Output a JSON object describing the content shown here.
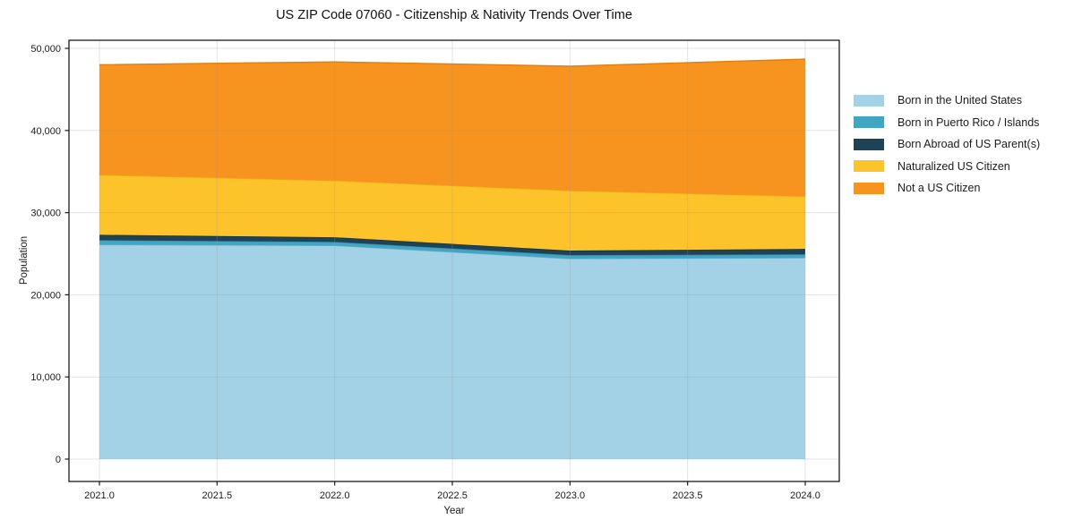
{
  "figure": {
    "background": "#ffffff",
    "text_color": "#1a1a1a",
    "grid_color": "#999999",
    "spine_color": "#1a1a1a"
  },
  "chart_data": {
    "type": "area",
    "stacked": true,
    "title": "US ZIP Code 07060 - Citizenship & Nativity Trends Over Time",
    "xlabel": "Year",
    "ylabel": "Population",
    "x": [
      2021,
      2022,
      2023,
      2024
    ],
    "series": [
      {
        "name": "Born in the United States",
        "color": "#a3d2e6",
        "edge": "#74b3cd",
        "values": [
          26100,
          26000,
          24400,
          24500
        ]
      },
      {
        "name": "Born in Puerto Rico / Islands",
        "color": "#43a5c4",
        "edge": "#2e84a0",
        "values": [
          550,
          450,
          430,
          430
        ]
      },
      {
        "name": "Born Abroad of US Parent(s)",
        "color": "#1e4356",
        "edge": "#152f3d",
        "values": [
          650,
          550,
          550,
          650
        ]
      },
      {
        "name": "Naturalized US Citizen",
        "color": "#fdc32b",
        "edge": "#edae14",
        "values": [
          7300,
          6900,
          7300,
          6400
        ]
      },
      {
        "name": "Not a US Citizen",
        "color": "#f7941f",
        "edge": "#e07f0d",
        "values": [
          13400,
          14450,
          15150,
          16700
        ]
      }
    ],
    "stacked_totals": [
      48000,
      48350,
      47830,
      48680
    ],
    "x_ticks": {
      "values": [
        2021.0,
        2021.5,
        2022.0,
        2022.5,
        2023.0,
        2023.5,
        2024.0
      ],
      "labels": [
        "2021.0",
        "2021.5",
        "2022.0",
        "2022.5",
        "2023.0",
        "2023.5",
        "2024.0"
      ]
    },
    "y_ticks": {
      "values": [
        0,
        10000,
        20000,
        30000,
        40000,
        50000
      ],
      "labels": [
        "0",
        "10,000",
        "20,000",
        "30,000",
        "40,000",
        "50,000"
      ]
    },
    "xlim": [
      2020.87,
      2024.14
    ],
    "ylim": [
      0,
      50000
    ],
    "grid": true,
    "legend_position": "outside-right"
  }
}
